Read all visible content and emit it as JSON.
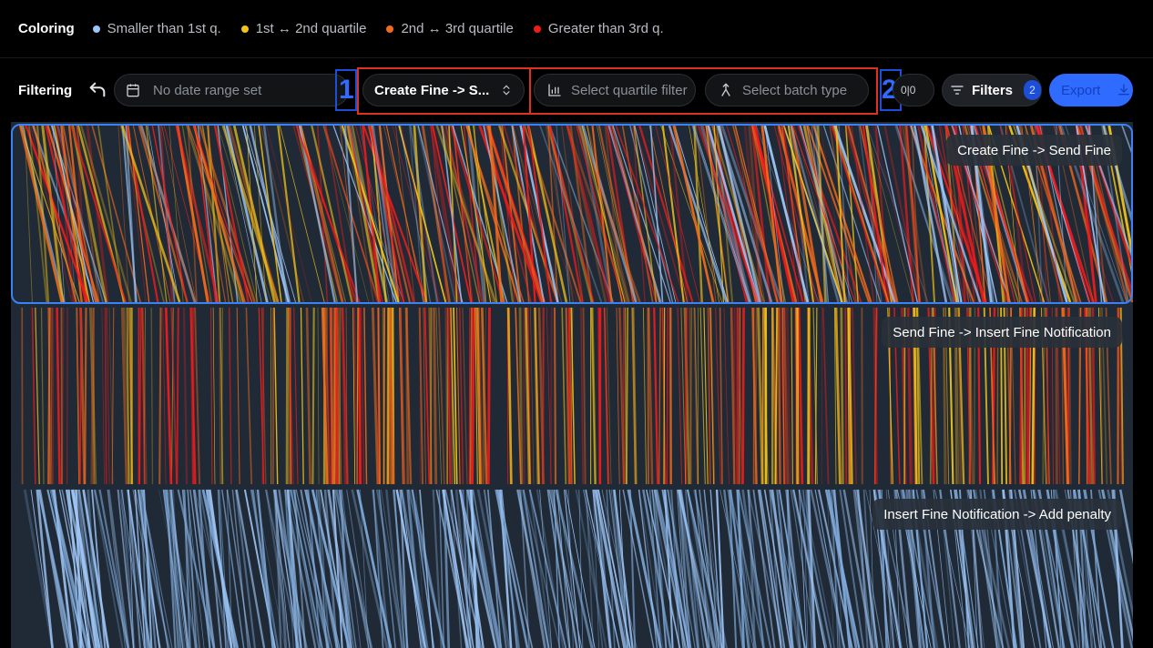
{
  "coloring": {
    "title": "Coloring",
    "legend": [
      {
        "label": "Smaller than 1st q.",
        "color": "#9ec5f5"
      },
      {
        "label": "1st ↔ 2nd quartile",
        "color": "#f2c318"
      },
      {
        "label": "2nd ↔ 3rd quartile",
        "color": "#f26a1b"
      },
      {
        "label": "Greater than 3rd q.",
        "color": "#f21b1b"
      }
    ]
  },
  "filtering": {
    "title": "Filtering",
    "date_placeholder": "No date range set",
    "segment_select": "Create Fine -> S...",
    "quartile_placeholder": "Select quartile filter",
    "batch_placeholder": "Select batch type",
    "partial_label": "0|0",
    "filters_label": "Filters",
    "filters_count": "2",
    "export_label": "Export",
    "markers": [
      "1",
      "2"
    ]
  },
  "segments": [
    {
      "label": "Create Fine -> Send Fine",
      "selected": true,
      "palette": [
        "#9ec5f5",
        "#f2c318",
        "#f26a1b",
        "#f21b1b"
      ]
    },
    {
      "label": "Send Fine -> Insert Fine Notification",
      "selected": false,
      "palette": [
        "#f21b1b",
        "#f26a1b",
        "#f2c318"
      ]
    },
    {
      "label": "Insert Fine Notification -> Add penalty",
      "selected": false,
      "palette": [
        "#9ec5f5",
        "#7fa9d9"
      ]
    }
  ]
}
